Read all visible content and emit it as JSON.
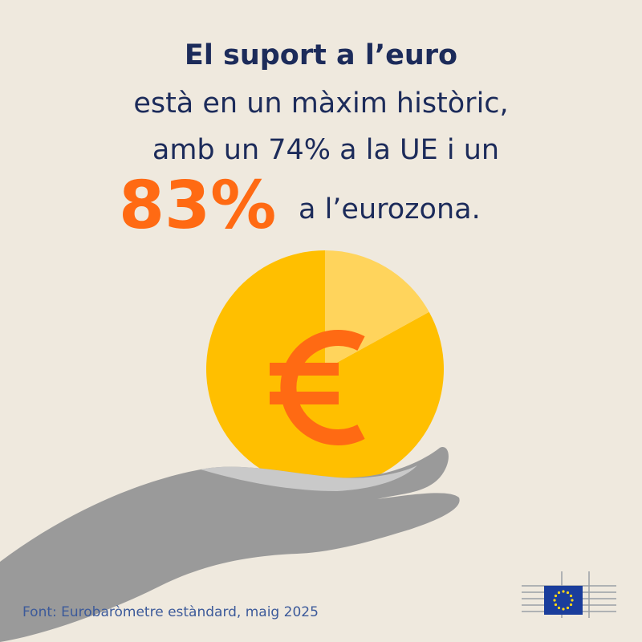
{
  "title": "El suport a l’euro",
  "lines": [
    "està en un màxim històric,",
    "amb un 74% a la UE i un"
  ],
  "highlight": {
    "value": 83,
    "label": "83%"
  },
  "suffix": "a l’eurozona.",
  "source": "Font: Eurobaròmetre estàndard, maig 2025"
}
